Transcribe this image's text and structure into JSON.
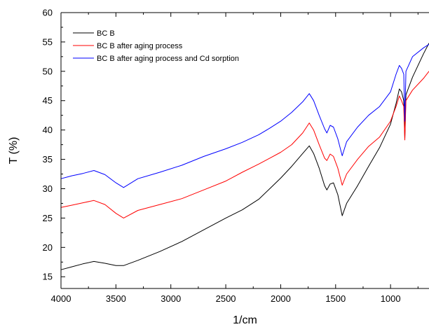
{
  "chart_data": {
    "type": "line",
    "title": "",
    "xlabel": "1/cm",
    "ylabel": "T (%)",
    "xlim": [
      4000,
      650
    ],
    "ylim": [
      13,
      60
    ],
    "x_reversed": true,
    "xticks": [
      4000,
      3500,
      3000,
      2500,
      2000,
      1500,
      1000
    ],
    "yticks": [
      15,
      20,
      25,
      30,
      35,
      40,
      45,
      50,
      55,
      60
    ],
    "grid": false,
    "legend_position": "top-left",
    "series": [
      {
        "name": "BC B",
        "color": "#000000",
        "x": [
          4000,
          3900,
          3800,
          3700,
          3600,
          3500,
          3430,
          3300,
          3100,
          2900,
          2700,
          2500,
          2350,
          2200,
          2100,
          2000,
          1900,
          1800,
          1740,
          1700,
          1650,
          1600,
          1580,
          1550,
          1520,
          1480,
          1440,
          1400,
          1300,
          1200,
          1100,
          1000,
          950,
          920,
          900,
          880,
          870,
          860,
          800,
          700,
          650
        ],
        "y": [
          16.2,
          16.7,
          17.2,
          17.6,
          17.3,
          16.9,
          16.9,
          17.8,
          19.3,
          21.0,
          23.0,
          25.0,
          26.4,
          28.2,
          30.0,
          31.8,
          33.8,
          36.0,
          37.3,
          36.0,
          33.5,
          30.5,
          29.8,
          30.8,
          31.0,
          29.0,
          25.4,
          27.5,
          30.5,
          33.8,
          37.0,
          41.0,
          44.5,
          47.0,
          46.5,
          45.0,
          38.5,
          46.0,
          49.0,
          53.0,
          54.8
        ]
      },
      {
        "name": "BC B after aging process",
        "color": "#ff0000",
        "x": [
          4000,
          3900,
          3800,
          3700,
          3600,
          3500,
          3430,
          3300,
          3100,
          2900,
          2700,
          2500,
          2350,
          2200,
          2100,
          2000,
          1900,
          1800,
          1740,
          1700,
          1650,
          1600,
          1580,
          1550,
          1520,
          1480,
          1440,
          1400,
          1300,
          1200,
          1100,
          1000,
          950,
          920,
          900,
          880,
          870,
          860,
          800,
          700,
          650
        ],
        "y": [
          26.8,
          27.2,
          27.6,
          28.0,
          27.3,
          25.8,
          25.0,
          26.3,
          27.3,
          28.3,
          29.8,
          31.3,
          32.8,
          34.2,
          35.2,
          36.2,
          37.5,
          39.5,
          41.2,
          40.0,
          37.5,
          35.2,
          34.8,
          35.9,
          35.5,
          33.5,
          30.6,
          32.5,
          35.0,
          37.2,
          38.8,
          41.5,
          44.0,
          45.8,
          45.0,
          44.0,
          38.3,
          45.0,
          46.8,
          48.8,
          50.0
        ]
      },
      {
        "name": "BC B after aging process and Cd sorption",
        "color": "#0000ff",
        "x": [
          4000,
          3900,
          3800,
          3700,
          3600,
          3500,
          3430,
          3300,
          3100,
          2900,
          2700,
          2500,
          2350,
          2200,
          2100,
          2000,
          1900,
          1800,
          1740,
          1700,
          1650,
          1600,
          1580,
          1550,
          1520,
          1480,
          1440,
          1400,
          1300,
          1200,
          1100,
          1000,
          950,
          920,
          900,
          880,
          870,
          860,
          800,
          700,
          650
        ],
        "y": [
          31.7,
          32.2,
          32.6,
          33.1,
          32.4,
          31.0,
          30.2,
          31.7,
          32.8,
          34.0,
          35.5,
          36.8,
          37.9,
          39.2,
          40.3,
          41.5,
          43.0,
          44.8,
          46.2,
          45.0,
          42.5,
          40.2,
          39.5,
          40.8,
          40.5,
          38.5,
          35.6,
          38.0,
          40.5,
          42.5,
          44.0,
          46.5,
          49.5,
          51.0,
          50.5,
          49.5,
          41.5,
          50.0,
          52.5,
          54.0,
          54.6
        ]
      }
    ]
  }
}
